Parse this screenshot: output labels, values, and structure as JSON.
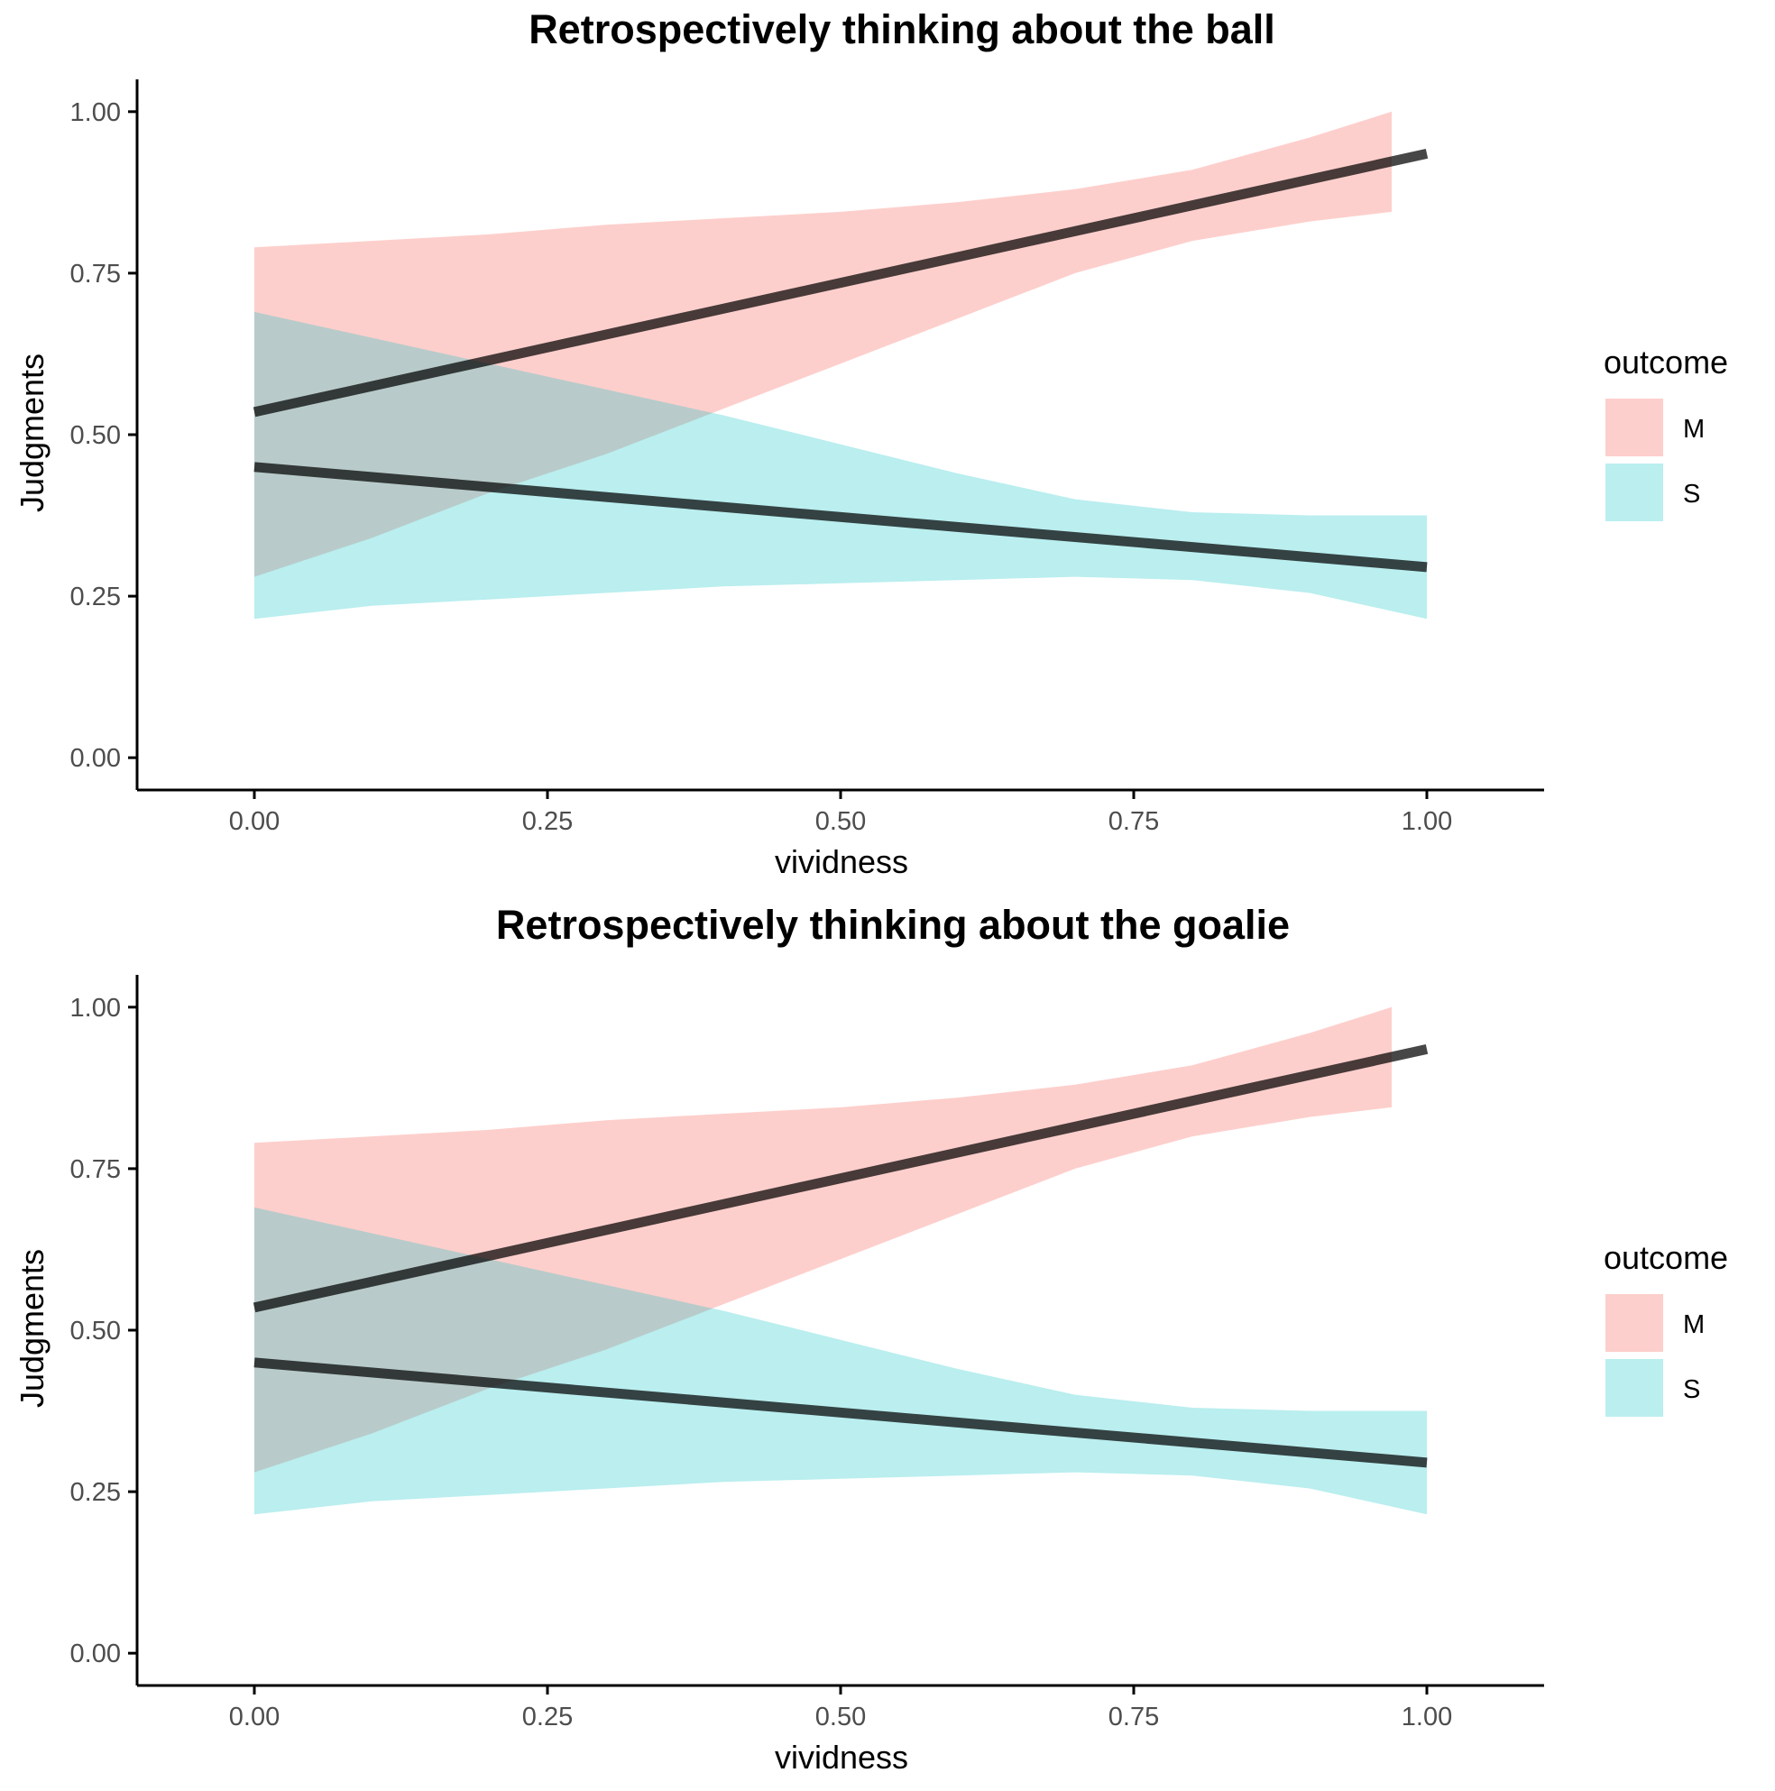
{
  "colors": {
    "M": "#F8766D",
    "S": "#00BFC4",
    "line": "#000000",
    "axis": "#000000"
  },
  "chart_data": [
    {
      "type": "line",
      "title": "Retrospectively thinking about the ball",
      "xlabel": "vividness",
      "ylabel": "Judgments",
      "xlim": [
        -0.1,
        1.1
      ],
      "ylim": [
        -0.05,
        1.05
      ],
      "xticks": [
        "0.00",
        "0.25",
        "0.50",
        "0.75",
        "1.00"
      ],
      "yticks": [
        "0.00",
        "0.25",
        "0.50",
        "0.75",
        "1.00"
      ],
      "grid": false,
      "legend": {
        "title": "outcome",
        "position": "right",
        "entries": [
          "M",
          "S"
        ]
      },
      "series": [
        {
          "name": "M",
          "fit": {
            "x": [
              0,
              1
            ],
            "y": [
              0.535,
              0.935
            ]
          },
          "band": {
            "x": [
              0,
              0.1,
              0.2,
              0.3,
              0.4,
              0.5,
              0.6,
              0.7,
              0.8,
              0.9,
              0.97
            ],
            "upper": [
              0.79,
              0.8,
              0.81,
              0.825,
              0.835,
              0.845,
              0.86,
              0.88,
              0.91,
              0.96,
              1.0
            ],
            "lower": [
              0.28,
              0.34,
              0.41,
              0.47,
              0.54,
              0.61,
              0.68,
              0.75,
              0.8,
              0.83,
              0.845
            ]
          }
        },
        {
          "name": "S",
          "fit": {
            "x": [
              0,
              1
            ],
            "y": [
              0.45,
              0.295
            ]
          },
          "band": {
            "x": [
              0,
              0.1,
              0.2,
              0.3,
              0.4,
              0.5,
              0.6,
              0.7,
              0.8,
              0.9,
              1.0
            ],
            "upper": [
              0.69,
              0.65,
              0.61,
              0.57,
              0.53,
              0.485,
              0.44,
              0.4,
              0.38,
              0.375,
              0.375
            ],
            "lower": [
              0.215,
              0.235,
              0.245,
              0.255,
              0.265,
              0.27,
              0.275,
              0.28,
              0.275,
              0.255,
              0.215
            ]
          }
        }
      ]
    },
    {
      "type": "line",
      "title": "Retrospectively thinking about the goalie",
      "xlabel": "vividness",
      "ylabel": "Judgments",
      "xlim": [
        -0.1,
        1.1
      ],
      "ylim": [
        -0.05,
        1.05
      ],
      "xticks": [
        "0.00",
        "0.25",
        "0.50",
        "0.75",
        "1.00"
      ],
      "yticks": [
        "0.00",
        "0.25",
        "0.50",
        "0.75",
        "1.00"
      ],
      "grid": false,
      "legend": {
        "title": "outcome",
        "position": "right",
        "entries": [
          "M",
          "S"
        ]
      },
      "series": [
        {
          "name": "M",
          "fit": {
            "x": [
              0,
              1
            ],
            "y": [
              0.535,
              0.935
            ]
          },
          "band": {
            "x": [
              0,
              0.1,
              0.2,
              0.3,
              0.4,
              0.5,
              0.6,
              0.7,
              0.8,
              0.9,
              0.97
            ],
            "upper": [
              0.79,
              0.8,
              0.81,
              0.825,
              0.835,
              0.845,
              0.86,
              0.88,
              0.91,
              0.96,
              1.0
            ],
            "lower": [
              0.28,
              0.34,
              0.41,
              0.47,
              0.54,
              0.61,
              0.68,
              0.75,
              0.8,
              0.83,
              0.845
            ]
          }
        },
        {
          "name": "S",
          "fit": {
            "x": [
              0,
              1
            ],
            "y": [
              0.45,
              0.295
            ]
          },
          "band": {
            "x": [
              0,
              0.1,
              0.2,
              0.3,
              0.4,
              0.5,
              0.6,
              0.7,
              0.8,
              0.9,
              1.0
            ],
            "upper": [
              0.69,
              0.65,
              0.61,
              0.57,
              0.53,
              0.485,
              0.44,
              0.4,
              0.38,
              0.375,
              0.375
            ],
            "lower": [
              0.215,
              0.235,
              0.245,
              0.255,
              0.265,
              0.27,
              0.275,
              0.28,
              0.275,
              0.255,
              0.215
            ]
          }
        }
      ]
    }
  ]
}
